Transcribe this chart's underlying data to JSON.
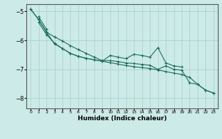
{
  "xlabel": "Humidex (Indice chaleur)",
  "background_color": "#cceae7",
  "grid_color": "#aad4d0",
  "line_color": "#1a6b5a",
  "xlim": [
    -0.5,
    23.5
  ],
  "ylim": [
    -8.35,
    -4.75
  ],
  "yticks": [
    -8,
    -7,
    -6,
    -5
  ],
  "xticks": [
    0,
    1,
    2,
    3,
    4,
    5,
    6,
    7,
    8,
    9,
    10,
    11,
    12,
    13,
    14,
    15,
    16,
    17,
    18,
    19,
    20,
    21,
    22,
    23
  ],
  "series": [
    [
      null,
      -5.18,
      -5.62,
      null,
      null,
      null,
      null,
      null,
      null,
      null,
      null,
      null,
      null,
      null,
      null,
      null,
      null,
      null,
      null,
      null,
      null,
      null,
      null,
      null
    ],
    [
      null,
      -5.38,
      -5.8,
      -6.1,
      -6.28,
      -6.45,
      -6.55,
      -6.62,
      -6.67,
      -6.72,
      -6.77,
      -6.82,
      -6.87,
      -6.91,
      -6.94,
      -6.97,
      -7.02,
      -7.08,
      -7.13,
      -7.18,
      -7.28,
      -7.52,
      -7.72,
      -7.82
    ],
    [
      -4.92,
      -5.28,
      -5.72,
      -6.12,
      -6.28,
      -6.45,
      -6.55,
      -6.62,
      -6.67,
      -6.72,
      -6.52,
      -6.58,
      -6.63,
      -6.48,
      -6.52,
      -6.58,
      -6.25,
      -6.78,
      -6.88,
      -6.92,
      null,
      null,
      null,
      null
    ],
    [
      -4.92,
      -5.28,
      -5.72,
      -5.88,
      -6.02,
      -6.18,
      -6.32,
      -6.45,
      -6.58,
      -6.7,
      -6.7,
      -6.73,
      -6.78,
      -6.8,
      -6.83,
      -6.86,
      -7.0,
      -6.88,
      -7.0,
      -7.03,
      -7.47,
      -7.52,
      -7.72,
      -7.82
    ]
  ]
}
